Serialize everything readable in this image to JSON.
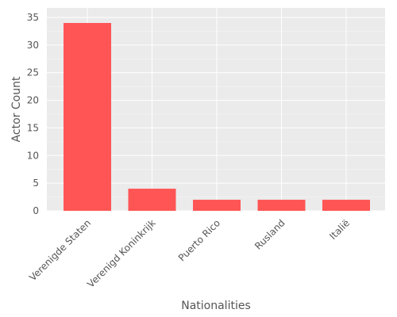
{
  "chart_data": {
    "type": "bar",
    "categories": [
      "Verenigde Staten",
      "Verenigd Koninkrijk",
      "Puerto Rico",
      "Rusland",
      "Italië"
    ],
    "values": [
      34,
      4,
      2,
      2,
      2
    ],
    "xlabel": "Nationalities",
    "ylabel": "Actor Count",
    "ylim": [
      0,
      35
    ],
    "yticks": [
      0,
      5,
      10,
      15,
      20,
      25,
      30,
      35
    ],
    "grid": true,
    "legend": "none",
    "colors": {
      "bar": "#ff5555",
      "plot_background": "#ebebeb",
      "grid": "#ffffff",
      "text": "#555555"
    }
  }
}
